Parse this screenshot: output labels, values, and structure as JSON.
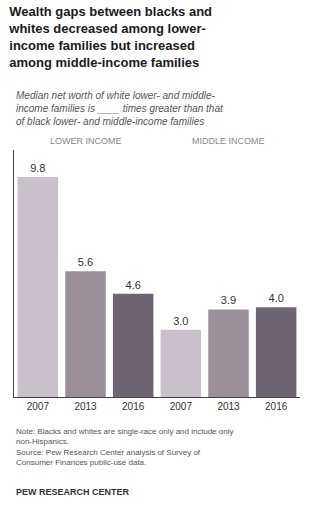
{
  "chart_data": {
    "type": "bar",
    "title": "Wealth gaps between blacks and\nwhites decreased among lower-\nincome families but increased\namong middle-income families",
    "subtitle": "Median net worth of white lower- and middle-\nincome families is ____ times greater than that\nof black lower- and middle-income families",
    "categories": [
      "2007",
      "2013",
      "2016",
      "2007",
      "2013",
      "2016"
    ],
    "values": [
      9.8,
      5.6,
      4.6,
      3.0,
      3.9,
      4.0
    ],
    "value_labels": [
      "9.8",
      "5.6",
      "4.6",
      "3.0",
      "3.9",
      "4.0"
    ],
    "colors": [
      "#c9c0cb",
      "#9b9099",
      "#6e6472",
      "#c9c0cb",
      "#9b9099",
      "#6e6472"
    ],
    "data_labels": true,
    "annotations": [
      {
        "text": "LOWER INCOME",
        "x": 1
      },
      {
        "text": "MIDDLE INCOME",
        "x": 4
      },
      {
        "text": "Note: Blacks and whites are single-race only and include only\nnon-Hispanics.\nSource: Pew Research Center analysis of Survey of\nConsumer Finances public-use data."
      },
      {
        "text": "PEW RESEARCH CENTER"
      }
    ],
    "ylim": [
      0,
      11
    ],
    "tick_labels": "x",
    "grid": false
  }
}
